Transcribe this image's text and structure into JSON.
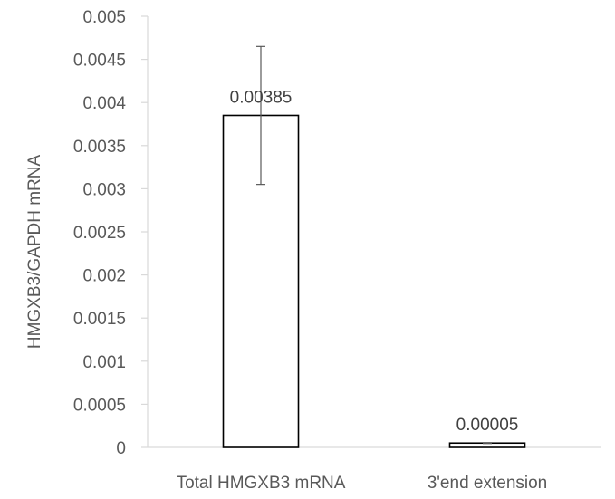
{
  "chart_data": {
    "type": "bar",
    "title": "",
    "xlabel": "",
    "ylabel": "HMGXB3/GAPDH mRNA",
    "ylim": [
      0,
      0.005
    ],
    "yticks": [
      "0",
      "0.0005",
      "0.001",
      "0.0015",
      "0.002",
      "0.0025",
      "0.003",
      "0.0035",
      "0.004",
      "0.0045",
      "0.005"
    ],
    "categories": [
      "Total HMGXB3 mRNA",
      "3'end extension"
    ],
    "values": [
      0.00385,
      5e-05
    ],
    "data_labels": [
      "0.00385",
      "0.00005"
    ],
    "error": [
      0.0008,
      5e-06
    ],
    "grid": false,
    "legend": "none",
    "colors": {
      "bar_fill": "#ffffff",
      "bar_stroke": "#000000",
      "axis": "#d9d9d9",
      "error_bar": "#595959"
    }
  }
}
